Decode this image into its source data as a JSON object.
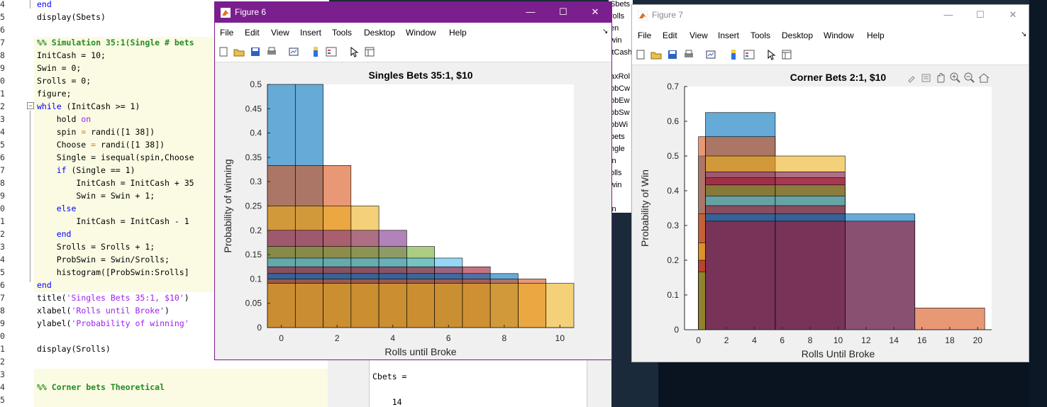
{
  "editor": {
    "lines": [
      {
        "n": "4",
        "code": [
          {
            "t": "end",
            "c": "kw"
          }
        ]
      },
      {
        "n": "5",
        "code": [
          {
            "t": "display(Sbets)",
            "c": ""
          }
        ]
      },
      {
        "n": "6",
        "code": []
      },
      {
        "n": "7",
        "code": [
          {
            "t": "%% Simulation 35:1(Single # bets",
            "c": "cmt"
          }
        ]
      },
      {
        "n": "8",
        "code": [
          {
            "t": "InitCash = 10;",
            "c": ""
          }
        ]
      },
      {
        "n": "9",
        "code": [
          {
            "t": "Swin = 0;",
            "c": ""
          }
        ]
      },
      {
        "n": "0",
        "code": [
          {
            "t": "Srolls = 0;",
            "c": ""
          }
        ]
      },
      {
        "n": "1",
        "code": [
          {
            "t": "figure;",
            "c": ""
          }
        ]
      },
      {
        "n": "2",
        "code": [
          {
            "t": "while",
            "c": "kw"
          },
          {
            "t": " (InitCash >= 1)",
            "c": ""
          }
        ]
      },
      {
        "n": "3",
        "code": [
          {
            "t": "    hold ",
            "c": ""
          },
          {
            "t": "on",
            "c": "str"
          }
        ]
      },
      {
        "n": "4",
        "code": [
          {
            "t": "    spin ",
            "c": ""
          },
          {
            "t": "=",
            "c": "kwor"
          },
          {
            "t": " randi([1 38])",
            "c": ""
          }
        ]
      },
      {
        "n": "5",
        "code": [
          {
            "t": "    Choose ",
            "c": ""
          },
          {
            "t": "=",
            "c": "kwor"
          },
          {
            "t": " randi([1 38])",
            "c": ""
          }
        ]
      },
      {
        "n": "6",
        "code": [
          {
            "t": "    Single = isequal(spin,Choose",
            "c": ""
          }
        ]
      },
      {
        "n": "7",
        "code": [
          {
            "t": "    ",
            "c": ""
          },
          {
            "t": "if",
            "c": "kw"
          },
          {
            "t": " (Single == 1)",
            "c": ""
          }
        ]
      },
      {
        "n": "8",
        "code": [
          {
            "t": "        InitCash = InitCash + 35",
            "c": ""
          }
        ]
      },
      {
        "n": "9",
        "code": [
          {
            "t": "        Swin = Swin + 1;",
            "c": ""
          }
        ]
      },
      {
        "n": "0",
        "code": [
          {
            "t": "    ",
            "c": ""
          },
          {
            "t": "else",
            "c": "kw"
          }
        ]
      },
      {
        "n": "1",
        "code": [
          {
            "t": "        InitCash = InitCash - 1",
            "c": ""
          }
        ]
      },
      {
        "n": "2",
        "code": [
          {
            "t": "    ",
            "c": ""
          },
          {
            "t": "end",
            "c": "kw"
          }
        ]
      },
      {
        "n": "3",
        "code": [
          {
            "t": "    Srolls = Srolls + 1;",
            "c": ""
          }
        ]
      },
      {
        "n": "4",
        "code": [
          {
            "t": "    ProbSwin = Swin/Srolls;",
            "c": ""
          }
        ]
      },
      {
        "n": "5",
        "code": [
          {
            "t": "    histogram([ProbSwin:Srolls]",
            "c": ""
          }
        ]
      },
      {
        "n": "6",
        "code": [
          {
            "t": "end",
            "c": "kw"
          }
        ]
      },
      {
        "n": "7",
        "code": [
          {
            "t": "title(",
            "c": ""
          },
          {
            "t": "'Singles Bets 35:1, $10'",
            "c": "str"
          },
          {
            "t": ")",
            "c": ""
          }
        ]
      },
      {
        "n": "8",
        "code": [
          {
            "t": "xlabel(",
            "c": ""
          },
          {
            "t": "'Rolls until Broke'",
            "c": "str"
          },
          {
            "t": ")",
            "c": ""
          }
        ]
      },
      {
        "n": "9",
        "code": [
          {
            "t": "ylabel(",
            "c": ""
          },
          {
            "t": "'Probability of winning'",
            "c": "str"
          }
        ]
      },
      {
        "n": "0",
        "code": []
      },
      {
        "n": "1",
        "code": [
          {
            "t": "display(Srolls)",
            "c": ""
          }
        ]
      },
      {
        "n": "2",
        "code": []
      },
      {
        "n": "3",
        "code": []
      },
      {
        "n": "4",
        "code": [
          {
            "t": "%% Corner bets Theoretical",
            "c": "cmt"
          }
        ]
      },
      {
        "n": "5",
        "code": []
      }
    ]
  },
  "workspace": {
    "items": [
      "Sbets",
      "rolls",
      "en",
      "win",
      "itCash",
      "",
      "axRol",
      "obCw",
      "obEw",
      "obSw",
      "obWi",
      "bets",
      "ngle",
      "in",
      "olls",
      "win",
      "",
      "in"
    ]
  },
  "command_window": {
    "line1": "Cbets =",
    "line2": "    14"
  },
  "figure6": {
    "title": "Figure 6",
    "menus": [
      "File",
      "Edit",
      "View",
      "Insert",
      "Tools",
      "Desktop",
      "Window",
      "Help"
    ],
    "controls": {
      "minimize": "—",
      "maximize": "☐",
      "close": "✕"
    }
  },
  "figure7": {
    "title": "Figure 7",
    "menus": [
      "File",
      "Edit",
      "View",
      "Insert",
      "Tools",
      "Desktop",
      "Window",
      "Help"
    ],
    "controls": {
      "minimize": "—",
      "maximize": "☐",
      "close": "✕"
    }
  },
  "chart_data": [
    {
      "type": "bar",
      "title": "Singles Bets 35:1, $10",
      "xlabel": "Rolls until Broke",
      "ylabel": "Probability of winning",
      "xlim": [
        -0.5,
        10.5
      ],
      "ylim": [
        0,
        0.5
      ],
      "xticks": [
        0,
        2,
        4,
        6,
        8,
        10
      ],
      "yticks": [
        0,
        0.05,
        0.1,
        0.15,
        0.2,
        0.25,
        0.3,
        0.35,
        0.4,
        0.45,
        0.5
      ],
      "bin_width": 1,
      "series": [
        {
          "color": "#0072BD",
          "bins": [
            0,
            1
          ],
          "value": 0.5
        },
        {
          "color": "#D95319",
          "bins": [
            0,
            1,
            2
          ],
          "value": 0.3333
        },
        {
          "color": "#EDB120",
          "bins": [
            0,
            1,
            2,
            3
          ],
          "value": 0.25
        },
        {
          "color": "#7E2F8E",
          "bins": [
            0,
            1,
            2,
            3,
            4
          ],
          "value": 0.2
        },
        {
          "color": "#77AC30",
          "bins": [
            0,
            1,
            2,
            3,
            4,
            5
          ],
          "value": 0.1667
        },
        {
          "color": "#4DBEEE",
          "bins": [
            0,
            1,
            2,
            3,
            4,
            5,
            6
          ],
          "value": 0.1429
        },
        {
          "color": "#A2142F",
          "bins": [
            0,
            1,
            2,
            3,
            4,
            5,
            6,
            7
          ],
          "value": 0.125
        },
        {
          "color": "#0072BD",
          "bins": [
            0,
            1,
            2,
            3,
            4,
            5,
            6,
            7,
            8
          ],
          "value": 0.1111
        },
        {
          "color": "#D95319",
          "bins": [
            0,
            1,
            2,
            3,
            4,
            5,
            6,
            7,
            8,
            9
          ],
          "value": 0.1
        },
        {
          "color": "#EDB120",
          "bins": [
            0,
            1,
            2,
            3,
            4,
            5,
            6,
            7,
            8,
            9,
            10
          ],
          "value": 0.0909
        }
      ]
    },
    {
      "type": "bar",
      "title": "Corner Bets 2:1, $10",
      "xlabel": "Rolls Until Broke",
      "ylabel": "Probability of Win",
      "xlim": [
        -1,
        21
      ],
      "ylim": [
        0,
        0.7
      ],
      "xticks": [
        0,
        2,
        4,
        6,
        8,
        10,
        12,
        14,
        16,
        18,
        20
      ],
      "yticks": [
        0,
        0.1,
        0.2,
        0.3,
        0.4,
        0.5,
        0.6,
        0.7
      ],
      "series": [
        {
          "color": "#0072BD",
          "edges": [
            [
              0,
              0.5
            ]
          ],
          "value": 0.5
        },
        {
          "color": "#0072BD",
          "edges": [
            [
              0.5,
              5.5
            ]
          ],
          "value": 0.625
        },
        {
          "color": "#D95319",
          "edges": [
            [
              0,
              0.5
            ],
            [
              0.5,
              5.5
            ]
          ],
          "value": 0.5556
        },
        {
          "color": "#EDB120",
          "edges": [
            [
              0.5,
              10.5
            ]
          ],
          "value": 0.5
        },
        {
          "color": "#7E2F8E",
          "edges": [
            [
              0.5,
              5.5
            ],
            [
              5.5,
              10.5
            ]
          ],
          "value": 0.4545
        },
        {
          "color": "#A2142F",
          "edges": [
            [
              0.5,
              5.5
            ],
            [
              5.5,
              10.5
            ]
          ],
          "value": 0.4375
        },
        {
          "color": "#77AC30",
          "edges": [
            [
              0.5,
              5.5
            ],
            [
              5.5,
              10.5
            ]
          ],
          "value": 0.4167
        },
        {
          "color": "#4DBEEE",
          "edges": [
            [
              0.5,
              5.5
            ],
            [
              5.5,
              10.5
            ]
          ],
          "value": 0.3846
        },
        {
          "color": "#A2142F",
          "edges": [
            [
              0.5,
              5.5
            ],
            [
              5.5,
              10.5
            ]
          ],
          "value": 0.3571
        },
        {
          "color": "#0072BD",
          "edges": [
            [
              0.5,
              5.5
            ],
            [
              5.5,
              10.5
            ],
            [
              10.5,
              15.5
            ]
          ],
          "value": 0.3333
        },
        {
          "color": "#D95319",
          "edges": [
            [
              0,
              0.5
            ]
          ],
          "value": 0.3333
        },
        {
          "color": "#EDB120",
          "edges": [
            [
              0,
              0.5
            ]
          ],
          "value": 0.25
        },
        {
          "color": "#A2142F",
          "edges": [
            [
              0,
              0.5
            ]
          ],
          "value": 0.2
        },
        {
          "color": "#77AC30",
          "edges": [
            [
              0,
              0.5
            ]
          ],
          "value": 0.1667
        },
        {
          "color": "#A2142F",
          "edges": [
            [
              0.5,
              5.5
            ],
            [
              5.5,
              10.5
            ],
            [
              10.5,
              15.5
            ]
          ],
          "value": 0.3125
        },
        {
          "color": "#D95319",
          "edges": [
            [
              15.5,
              20.5
            ]
          ],
          "value": 0.0625
        }
      ]
    }
  ]
}
